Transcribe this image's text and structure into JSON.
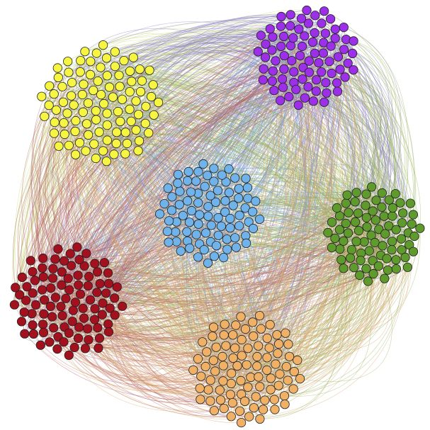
{
  "graph": {
    "type": "network",
    "background": "#ffffff",
    "node_outline_color": "#1f1f1f",
    "communities": [
      {
        "name": "yellow",
        "color": "#f5f542",
        "edge_color": "#c9d97a",
        "node_count": 95,
        "position": "top-left"
      },
      {
        "name": "purple",
        "color": "#9b30e8",
        "edge_color": "#8a7fc6",
        "node_count": 80,
        "position": "top-right"
      },
      {
        "name": "blue",
        "color": "#6fb3ea",
        "edge_color": "#6fa8d8",
        "node_count": 85,
        "position": "center"
      },
      {
        "name": "green",
        "color": "#5e9a2c",
        "edge_color": "#97b25a",
        "node_count": 80,
        "position": "right"
      },
      {
        "name": "red",
        "color": "#a3101e",
        "edge_color": "#b7656b",
        "node_count": 95,
        "position": "bottom-left"
      },
      {
        "name": "orange",
        "color": "#f0b166",
        "edge_color": "#d9a56c",
        "node_count": 90,
        "position": "bottom-center"
      }
    ],
    "edge_style": "curved",
    "labels_shown": false
  }
}
